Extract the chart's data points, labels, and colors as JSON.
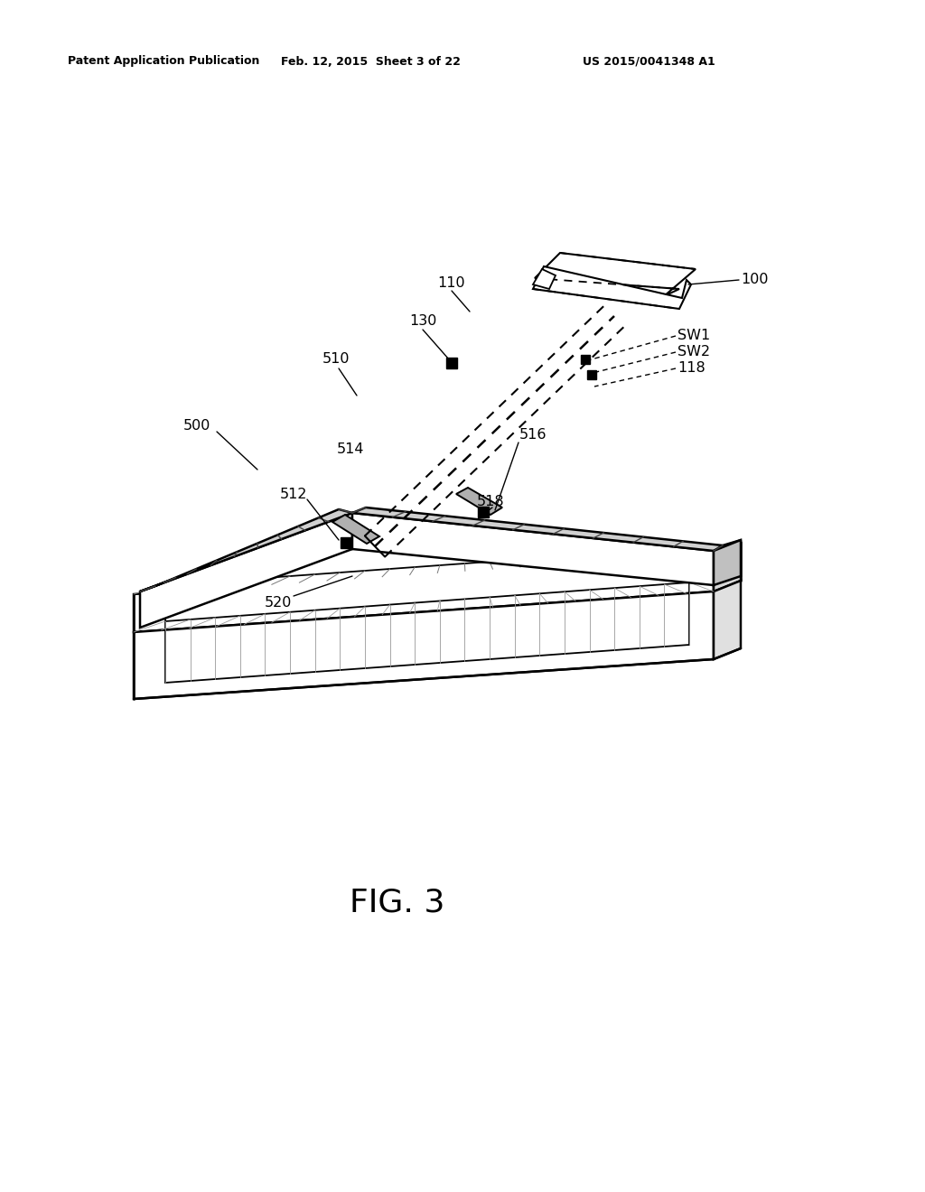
{
  "bg_color": "#ffffff",
  "header_left": "Patent Application Publication",
  "header_mid": "Feb. 12, 2015  Sheet 3 of 22",
  "header_right": "US 2015/0041348 A1",
  "fig_label": "FIG. 3"
}
